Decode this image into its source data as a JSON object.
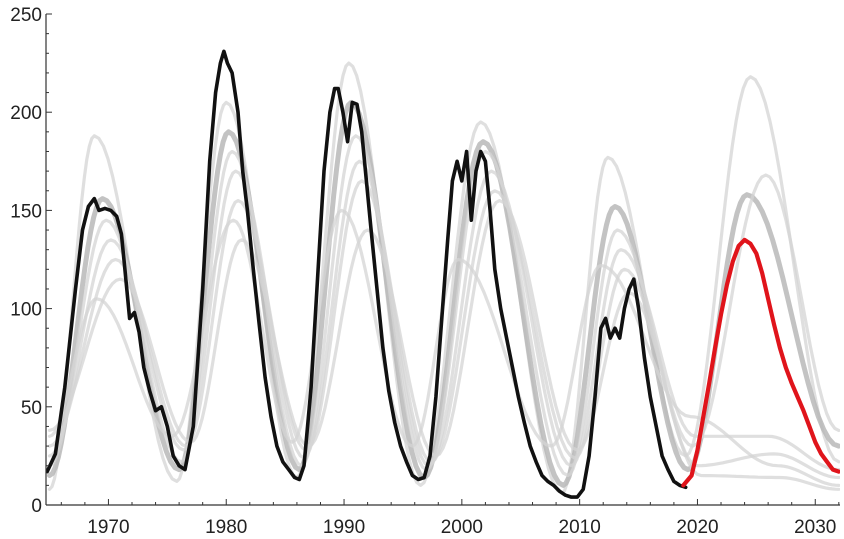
{
  "chart_data": {
    "type": "line",
    "title": "",
    "xlabel": "",
    "ylabel": "",
    "xlim": [
      1964.7,
      2032.1
    ],
    "ylim": [
      0,
      250
    ],
    "x_ticks": [
      1970,
      1980,
      1990,
      2000,
      2010,
      2020,
      2030
    ],
    "y_ticks": [
      0,
      50,
      100,
      150,
      200,
      250
    ],
    "grid": false,
    "legend": "none",
    "colors": {
      "observed": "#111111",
      "forecast": "#e0141b",
      "model_light": "#d4d4d4",
      "model_mid": "#b8b8b8"
    },
    "series": [
      {
        "role": "observed",
        "x": [
          1964.8,
          1965.5,
          1966.3,
          1967.2,
          1967.8,
          1968.3,
          1968.8,
          1969.2,
          1969.7,
          1970.2,
          1970.7,
          1971.1,
          1971.4,
          1971.8,
          1972.2,
          1972.6,
          1973.0,
          1973.5,
          1974.0,
          1974.5,
          1975.0,
          1975.5,
          1976.0,
          1976.5,
          1977.2,
          1978.0,
          1978.6,
          1979.1,
          1979.5,
          1979.8,
          1980.1,
          1980.5,
          1981.0,
          1981.4,
          1981.8,
          1982.3,
          1982.8,
          1983.3,
          1983.8,
          1984.3,
          1984.8,
          1985.3,
          1985.8,
          1986.2,
          1986.6,
          1987.2,
          1987.8,
          1988.3,
          1988.8,
          1989.2,
          1989.5,
          1989.9,
          1990.3,
          1990.7,
          1991.1,
          1991.5,
          1991.9,
          1992.3,
          1992.8,
          1993.3,
          1993.8,
          1994.3,
          1994.8,
          1995.3,
          1995.8,
          1996.3,
          1996.8,
          1997.3,
          1997.8,
          1998.3,
          1998.8,
          1999.2,
          1999.6,
          2000.0,
          2000.4,
          2000.8,
          2001.2,
          2001.6,
          2002.0,
          2002.4,
          2002.8,
          2003.3,
          2003.8,
          2004.3,
          2004.8,
          2005.3,
          2005.8,
          2006.3,
          2006.8,
          2007.3,
          2007.8,
          2008.3,
          2008.8,
          2009.3,
          2009.8,
          2010.3,
          2010.8,
          2011.3,
          2011.8,
          2012.2,
          2012.6,
          2013.0,
          2013.4,
          2013.8,
          2014.2,
          2014.6,
          2015.0,
          2015.5,
          2016.0,
          2016.5,
          2017.0,
          2017.5,
          2018.0,
          2018.5,
          2019.0
        ],
        "y": [
          17,
          26,
          60,
          110,
          140,
          152,
          156,
          150,
          151,
          150,
          147,
          138,
          120,
          95,
          98,
          88,
          70,
          58,
          48,
          50,
          40,
          25,
          20,
          18,
          40,
          110,
          175,
          210,
          225,
          231,
          225,
          220,
          200,
          170,
          150,
          120,
          92,
          65,
          45,
          30,
          22,
          18,
          14,
          13,
          20,
          60,
          120,
          170,
          200,
          212,
          212,
          200,
          185,
          205,
          204,
          190,
          165,
          140,
          110,
          80,
          58,
          42,
          30,
          22,
          15,
          13,
          14,
          25,
          55,
          95,
          135,
          165,
          175,
          165,
          180,
          145,
          170,
          180,
          175,
          150,
          120,
          100,
          85,
          70,
          55,
          42,
          30,
          22,
          15,
          12,
          10,
          7,
          5,
          4,
          4,
          8,
          25,
          55,
          90,
          95,
          85,
          90,
          85,
          100,
          110,
          115,
          100,
          75,
          55,
          40,
          25,
          18,
          12,
          10,
          9
        ],
        "thickness": "thick",
        "shade": "black"
      },
      {
        "role": "forecast",
        "x": [
          2018.8,
          2019.5,
          2020.0,
          2020.5,
          2021.0,
          2021.5,
          2022.0,
          2022.5,
          2023.0,
          2023.5,
          2024.0,
          2024.5,
          2025.0,
          2025.5,
          2026.0,
          2026.5,
          2027.0,
          2027.5,
          2028.0,
          2028.5,
          2029.0,
          2029.5,
          2030.0,
          2030.5,
          2031.0,
          2031.5,
          2032.0
        ],
        "y": [
          10,
          15,
          28,
          45,
          62,
          80,
          97,
          112,
          124,
          132,
          135,
          133,
          128,
          118,
          105,
          92,
          80,
          70,
          62,
          55,
          48,
          40,
          32,
          26,
          22,
          18,
          17
        ],
        "thickness": "thick",
        "shade": "red"
      },
      {
        "role": "model",
        "peaks": [
          [
            1968.8,
            188
          ],
          [
            1980.0,
            205
          ],
          [
            1990.4,
            225
          ],
          [
            2001.6,
            195
          ],
          [
            2012.4,
            177
          ],
          [
            2024.5,
            218
          ]
        ],
        "troughs": [
          [
            1965,
            8
          ],
          [
            1975.8,
            12
          ],
          [
            1986.0,
            14
          ],
          [
            1996.5,
            10
          ],
          [
            2008.5,
            6
          ],
          [
            2019.0,
            25
          ],
          [
            2032,
            22
          ]
        ],
        "thickness": "thin",
        "shade": "light"
      },
      {
        "role": "model",
        "peaks": [
          [
            1969.5,
            156
          ],
          [
            1980.2,
            190
          ],
          [
            1990.6,
            205
          ],
          [
            2001.8,
            185
          ],
          [
            2013.0,
            152
          ],
          [
            2024.2,
            158
          ]
        ],
        "troughs": [
          [
            1965,
            15
          ],
          [
            1976.0,
            18
          ],
          [
            1986.2,
            18
          ],
          [
            1996.8,
            14
          ],
          [
            2008.6,
            10
          ],
          [
            2019.2,
            18
          ],
          [
            2032,
            30
          ]
        ],
        "thickness": "thick",
        "shade": "mid"
      },
      {
        "role": "model",
        "peaks": [
          [
            1969.8,
            145
          ],
          [
            1980.5,
            180
          ],
          [
            1991.0,
            188
          ],
          [
            2002.0,
            180
          ],
          [
            2013.2,
            140
          ],
          [
            2025.8,
            168
          ]
        ],
        "troughs": [
          [
            1965,
            20
          ],
          [
            1976.2,
            22
          ],
          [
            1986.4,
            20
          ],
          [
            1997.0,
            18
          ],
          [
            2009.0,
            15
          ],
          [
            2019.6,
            30
          ],
          [
            2032,
            38
          ]
        ],
        "thickness": "thin",
        "shade": "light"
      },
      {
        "role": "model",
        "peaks": [
          [
            1970.2,
            135
          ],
          [
            1980.8,
            170
          ],
          [
            1991.3,
            175
          ],
          [
            2002.5,
            170
          ],
          [
            2013.5,
            130
          ],
          [
            2026.0,
            35
          ]
        ],
        "troughs": [
          [
            1965,
            25
          ],
          [
            1976.4,
            28
          ],
          [
            1986.6,
            24
          ],
          [
            1997.2,
            20
          ],
          [
            2009.3,
            20
          ],
          [
            2019.8,
            35
          ],
          [
            2032,
            18
          ]
        ],
        "thickness": "thin",
        "shade": "light"
      },
      {
        "role": "model",
        "peaks": [
          [
            1970.6,
            125
          ],
          [
            1981.0,
            155
          ],
          [
            1991.5,
            165
          ],
          [
            2002.8,
            160
          ],
          [
            2013.8,
            120
          ],
          [
            2026.5,
            26
          ]
        ],
        "troughs": [
          [
            1965,
            30
          ],
          [
            1976.6,
            30
          ],
          [
            1986.8,
            28
          ],
          [
            1997.4,
            22
          ],
          [
            2009.6,
            24
          ],
          [
            2020.0,
            20
          ],
          [
            2032,
            14
          ]
        ],
        "thickness": "thin",
        "shade": "light"
      },
      {
        "role": "model",
        "peaks": [
          [
            1969.0,
            105
          ],
          [
            1980.6,
            145
          ],
          [
            1989.8,
            150
          ],
          [
            1999.7,
            125
          ],
          [
            2011.8,
            122
          ],
          [
            2026.8,
            20
          ]
        ],
        "troughs": [
          [
            1965,
            35
          ],
          [
            1975.4,
            35
          ],
          [
            1985.6,
            32
          ],
          [
            1995.8,
            30
          ],
          [
            2007.6,
            30
          ],
          [
            2019.4,
            45
          ],
          [
            2032,
            10
          ]
        ],
        "thickness": "thin",
        "shade": "light"
      },
      {
        "role": "model",
        "peaks": [
          [
            1971.0,
            115
          ],
          [
            1981.3,
            135
          ],
          [
            1992.0,
            140
          ],
          [
            2003.2,
            155
          ],
          [
            2014.2,
            108
          ],
          [
            2027.0,
            14
          ]
        ],
        "troughs": [
          [
            1965,
            38
          ],
          [
            1977.0,
            32
          ],
          [
            1987.0,
            30
          ],
          [
            1997.8,
            25
          ],
          [
            2009.8,
            28
          ],
          [
            2020.3,
            15
          ],
          [
            2032,
            8
          ]
        ],
        "thickness": "thin",
        "shade": "light"
      }
    ]
  }
}
